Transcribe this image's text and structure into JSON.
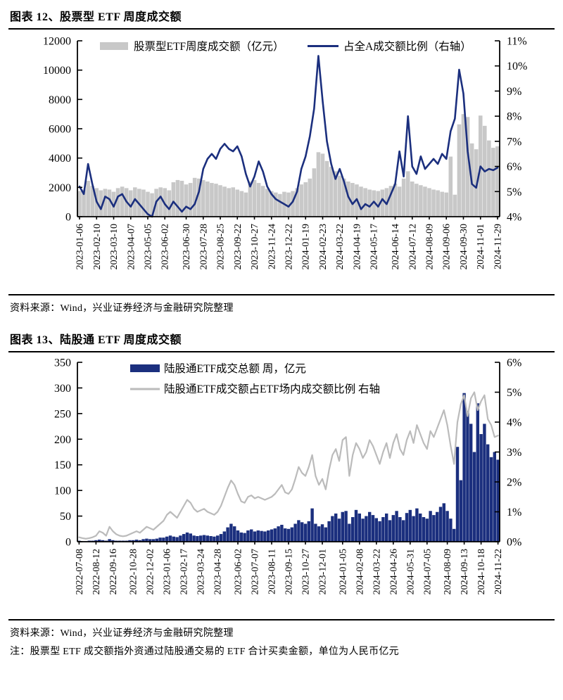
{
  "figure12": {
    "title": "图表 12、股票型 ETF 周度成交额",
    "source": "资料来源：Wind，兴业证券经济与金融研究院整理"
  },
  "figure13": {
    "title": "图表 13、陆股通 ETF 周度成交额",
    "source": "资料来源：Wind，兴业证券经济与金融研究院整理",
    "note": "注：股票型 ETF 成交额指外资通过陆股通交易的 ETF 合计买卖金额，单位为人民币亿元"
  },
  "chart_data": [
    {
      "type": "bar+line",
      "title": "股票型 ETF 周度成交额",
      "legend_position": "top",
      "grid": false,
      "left_axis": {
        "min": 0,
        "max": 12000,
        "tick_labels": [
          "0",
          "2000",
          "4000",
          "6000",
          "8000",
          "10000",
          "12000"
        ]
      },
      "right_axis": {
        "min": 4,
        "max": 11,
        "tick_labels": [
          "4%",
          "5%",
          "6%",
          "7%",
          "8%",
          "9%",
          "10%",
          "11%"
        ]
      },
      "x_tick_labels": [
        "2023-01-06",
        "2023-02-10",
        "2023-03-10",
        "2023-04-07",
        "2023-05-05",
        "2023-06-02",
        "2023-06-30",
        "2023-07-28",
        "2023-08-25",
        "2023-09-22",
        "2023-10-27",
        "2023-11-24",
        "2023-12-22",
        "2024-01-19",
        "2024-02-23",
        "2024-03-22",
        "2024-04-19",
        "2024-05-17",
        "2024-06-14",
        "2024-07-12",
        "2024-08-09",
        "2024-09-06",
        "2024-09-30",
        "2024-11-01",
        "2024-11-29"
      ],
      "series": [
        {
          "name": "股票型ETF周度成交额（亿元）",
          "type": "bar",
          "axis": "left",
          "color": "#C8C8C8",
          "values": [
            1750,
            1850,
            2450,
            2100,
            1950,
            1800,
            1900,
            1850,
            1700,
            1950,
            2050,
            1950,
            1800,
            2000,
            1900,
            1850,
            1700,
            1600,
            1900,
            2000,
            1950,
            1800,
            2350,
            2500,
            2450,
            2200,
            2300,
            2650,
            2600,
            2500,
            2400,
            2300,
            2250,
            2150,
            2050,
            1950,
            2000,
            1850,
            1750,
            1650,
            2400,
            2500,
            2300,
            2100,
            1900,
            1750,
            1650,
            1550,
            1700,
            1650,
            1750,
            1950,
            2200,
            2350,
            2600,
            3300,
            4400,
            4300,
            3800,
            3400,
            3100,
            2800,
            2600,
            2400,
            2300,
            2200,
            2050,
            1950,
            1850,
            1800,
            1750,
            1850,
            1950,
            2100,
            2250,
            2050,
            2600,
            3100,
            2400,
            2250,
            2150,
            2050,
            1950,
            1850,
            1800,
            1700,
            1650,
            4100,
            1500,
            6300,
            7000,
            6800,
            5000,
            4600,
            6900,
            6200,
            5200,
            4700,
            4800
          ]
        },
        {
          "name": "占全A成交额比例（右轴）",
          "type": "line",
          "axis": "right",
          "color": "#1B2F7E",
          "values": [
            5.2,
            4.9,
            6.1,
            5.3,
            4.6,
            4.3,
            4.8,
            4.7,
            4.4,
            4.8,
            4.9,
            4.6,
            4.4,
            4.7,
            4.5,
            4.3,
            4.1,
            4.0,
            4.6,
            4.8,
            4.5,
            4.3,
            4.6,
            4.4,
            4.2,
            4.4,
            4.3,
            4.5,
            5.0,
            5.9,
            6.3,
            6.5,
            6.3,
            6.7,
            6.9,
            6.7,
            6.6,
            6.8,
            6.4,
            5.7,
            5.2,
            5.6,
            6.2,
            5.8,
            5.2,
            4.9,
            4.7,
            4.6,
            4.5,
            4.4,
            4.6,
            5.0,
            5.9,
            6.4,
            7.2,
            8.3,
            10.4,
            8.6,
            7.0,
            6.1,
            5.5,
            5.9,
            5.4,
            4.8,
            4.5,
            4.7,
            4.3,
            4.5,
            4.4,
            4.6,
            4.4,
            4.7,
            4.5,
            4.9,
            5.3,
            6.6,
            5.6,
            8.0,
            6.0,
            5.7,
            6.4,
            5.9,
            6.1,
            6.3,
            6.1,
            6.5,
            6.3,
            7.4,
            7.9,
            9.85,
            8.9,
            6.6,
            5.3,
            5.15,
            6.0,
            5.8,
            5.9,
            5.85,
            5.95
          ]
        }
      ]
    },
    {
      "type": "bar+line",
      "title": "陆股通 ETF 周度成交额",
      "legend_position": "top",
      "grid": false,
      "left_axis": {
        "min": 0,
        "max": 350,
        "tick_labels": [
          "0",
          "50",
          "100",
          "150",
          "200",
          "250",
          "300",
          "350"
        ]
      },
      "right_axis": {
        "min": 0,
        "max": 6,
        "tick_labels": [
          "0%",
          "1%",
          "2%",
          "3%",
          "4%",
          "5%",
          "6%"
        ]
      },
      "x_tick_labels": [
        "2022-07-08",
        "2022-08-12",
        "2022-09-16",
        "2022-10-28",
        "2022-12-02",
        "2023-01-06",
        "2023-02-17",
        "2023-03-24",
        "2023-04-28",
        "2023-06-02",
        "2023-07-07",
        "2023-08-11",
        "2023-09-15",
        "2023-10-27",
        "2023-12-01",
        "2024-01-05",
        "2024-02-08",
        "2024-03-22",
        "2024-04-26",
        "2024-05-31",
        "2024-07-05",
        "2024-08-09",
        "2024-09-13",
        "2024-10-18",
        "2024-11-22"
      ],
      "series": [
        {
          "name": "陆股通ETF成交总额 周，亿元",
          "type": "bar",
          "axis": "left",
          "color": "#1B2F7E",
          "values": [
            2,
            1,
            1,
            2,
            2,
            3,
            4,
            3,
            2,
            5,
            3,
            2,
            2,
            2,
            2,
            3,
            3,
            4,
            3,
            5,
            6,
            5,
            5,
            6,
            8,
            8,
            10,
            12,
            10,
            9,
            12,
            15,
            18,
            16,
            12,
            11,
            12,
            13,
            12,
            11,
            10,
            12,
            15,
            20,
            28,
            35,
            30,
            22,
            18,
            17,
            22,
            24,
            20,
            22,
            21,
            20,
            22,
            24,
            26,
            30,
            33,
            26,
            25,
            28,
            35,
            42,
            38,
            35,
            40,
            65,
            35,
            30,
            34,
            28,
            40,
            50,
            55,
            45,
            58,
            60,
            35,
            48,
            62,
            55,
            45,
            50,
            58,
            52,
            46,
            40,
            48,
            55,
            42,
            52,
            60,
            48,
            42,
            56,
            62,
            50,
            65,
            55,
            48,
            45,
            60,
            52,
            58,
            68,
            75,
            60,
            45,
            25,
            185,
            120,
            290,
            255,
            230,
            175,
            270,
            210,
            230,
            190,
            165,
            175,
            160
          ]
        },
        {
          "name": "陆股通ETF成交额占ETF场内成交额比例 右轴",
          "type": "line",
          "axis": "right",
          "color": "#BBBBBB",
          "values": [
            0.15,
            0.12,
            0.1,
            0.12,
            0.15,
            0.2,
            0.35,
            0.3,
            0.2,
            0.5,
            0.35,
            0.25,
            0.2,
            0.18,
            0.2,
            0.25,
            0.3,
            0.35,
            0.3,
            0.4,
            0.5,
            0.45,
            0.4,
            0.5,
            0.6,
            0.7,
            0.9,
            1.0,
            0.9,
            0.8,
            1.0,
            1.2,
            1.4,
            1.3,
            1.1,
            1.0,
            1.05,
            1.1,
            1.0,
            0.95,
            0.9,
            1.0,
            1.2,
            1.5,
            1.8,
            2.05,
            1.9,
            1.6,
            1.35,
            1.3,
            1.5,
            1.55,
            1.45,
            1.5,
            1.45,
            1.4,
            1.45,
            1.5,
            1.6,
            1.75,
            1.9,
            1.65,
            1.6,
            1.75,
            2.1,
            2.5,
            2.3,
            2.2,
            2.5,
            2.9,
            2.2,
            1.9,
            2.1,
            1.75,
            2.4,
            2.9,
            3.1,
            2.7,
            3.4,
            3.5,
            2.2,
            2.9,
            3.3,
            3.1,
            2.8,
            3.0,
            3.4,
            3.2,
            2.9,
            2.6,
            3.0,
            3.3,
            2.8,
            3.3,
            3.6,
            3.1,
            2.9,
            3.4,
            3.7,
            3.3,
            3.9,
            3.6,
            3.3,
            3.1,
            3.7,
            3.5,
            3.8,
            4.1,
            4.4,
            3.9,
            3.2,
            2.6,
            4.0,
            4.6,
            4.9,
            4.2,
            4.8,
            5.0,
            4.4,
            4.7,
            4.9,
            4.1,
            3.9,
            3.5,
            3.55
          ]
        }
      ]
    }
  ]
}
